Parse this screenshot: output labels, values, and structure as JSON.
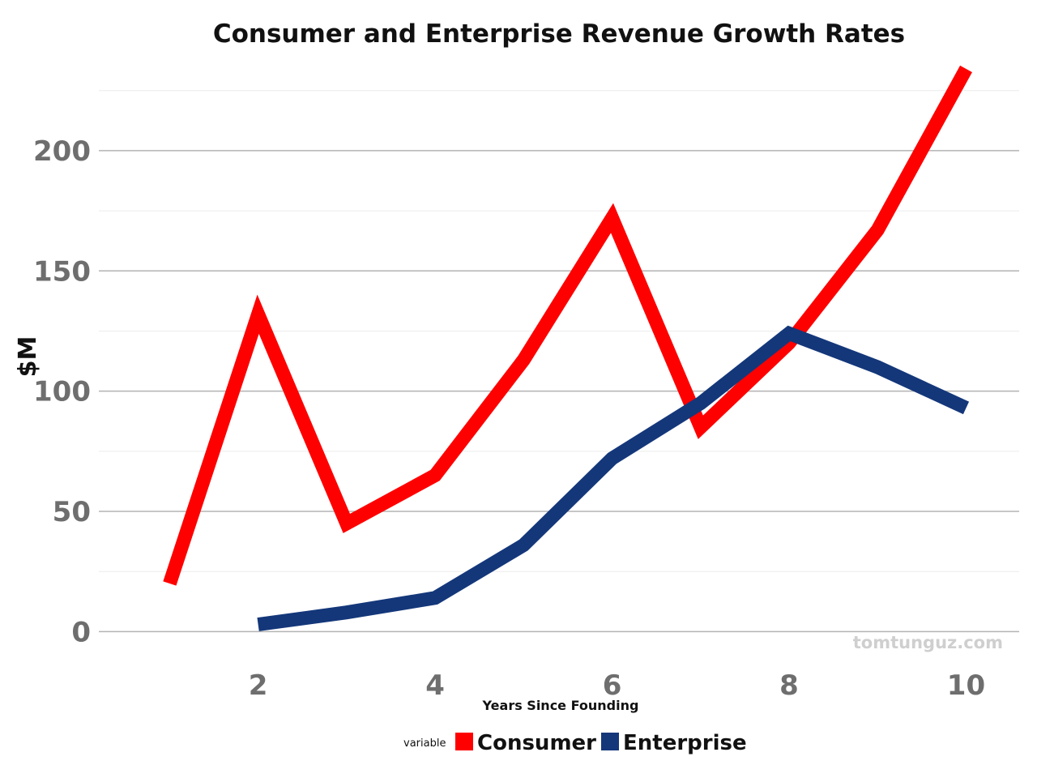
{
  "chart_data": {
    "type": "line",
    "title": "Consumer and Enterprise Revenue Growth Rates",
    "xlabel": "Years Since Founding",
    "ylabel": "$M",
    "x_ticks": [
      2,
      4,
      6,
      8,
      10
    ],
    "y_ticks": [
      0,
      50,
      100,
      150,
      200
    ],
    "xlim": [
      0.2,
      10.6
    ],
    "ylim": [
      -12,
      234
    ],
    "grid": true,
    "legend_title": "variable",
    "legend_position": "bottom",
    "watermark": "tomtunguz.com",
    "series": [
      {
        "name": "Consumer",
        "color": "#ff0000",
        "x": [
          1,
          2,
          3,
          4,
          5,
          6,
          7,
          8,
          9,
          10
        ],
        "values": [
          20,
          132,
          45,
          65,
          113,
          172,
          85,
          120,
          167,
          234
        ]
      },
      {
        "name": "Enterprise",
        "color": "#14377a",
        "x": [
          2,
          3,
          4,
          5,
          6,
          7,
          8,
          9,
          10
        ],
        "values": [
          3,
          8,
          14,
          36,
          72,
          95,
          124,
          110,
          93
        ]
      }
    ]
  }
}
